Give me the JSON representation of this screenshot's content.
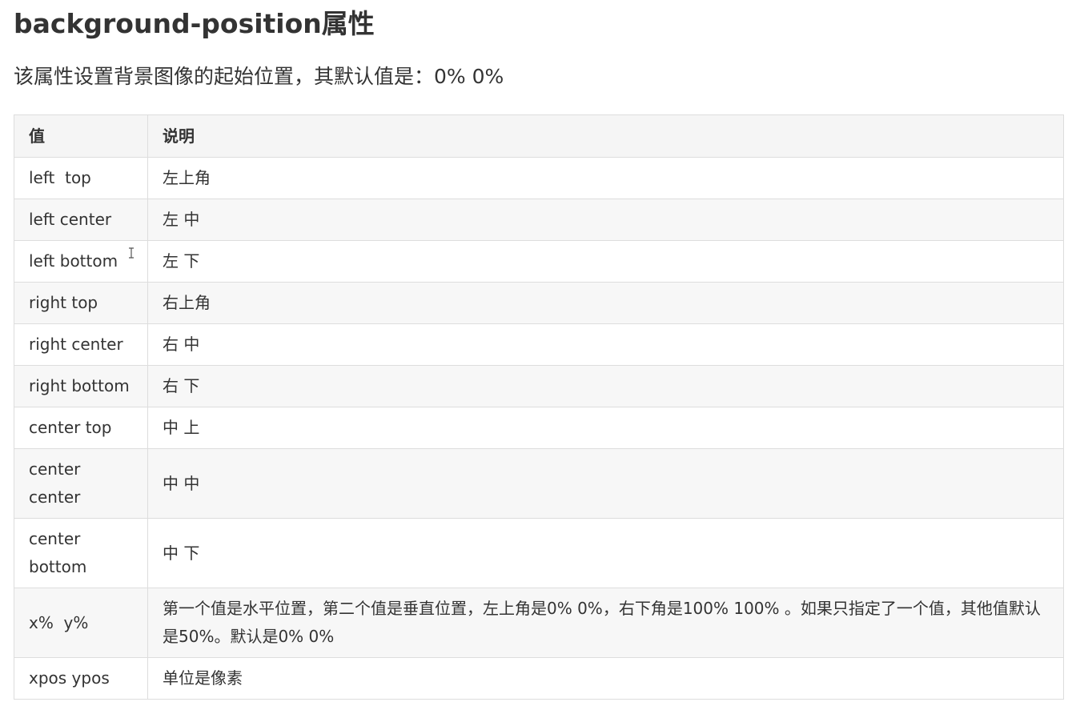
{
  "heading": "background-position属性",
  "intro": "该属性设置背景图像的起始位置，其默认值是：0% 0%",
  "table": {
    "headers": [
      "值",
      "说明"
    ],
    "rows": [
      {
        "value": "left  top",
        "desc": "左上角"
      },
      {
        "value": "left center",
        "desc": "左 中"
      },
      {
        "value": "left bottom",
        "desc": "左 下"
      },
      {
        "value": "right top",
        "desc": "右上角"
      },
      {
        "value": "right center",
        "desc": "右 中"
      },
      {
        "value": "right bottom",
        "desc": "右 下"
      },
      {
        "value": "center top",
        "desc": "中 上"
      },
      {
        "value": "center center",
        "desc": "中 中"
      },
      {
        "value": "center bottom",
        "desc": "中 下"
      },
      {
        "value": "x%  y%",
        "desc": "第一个值是水平位置，第二个值是垂直位置，左上角是0%  0%，右下角是100%  100% 。如果只指定了一个值，其他值默认是50%。默认是0%  0%"
      },
      {
        "value": "xpos ypos",
        "desc": "单位是像素"
      }
    ]
  }
}
